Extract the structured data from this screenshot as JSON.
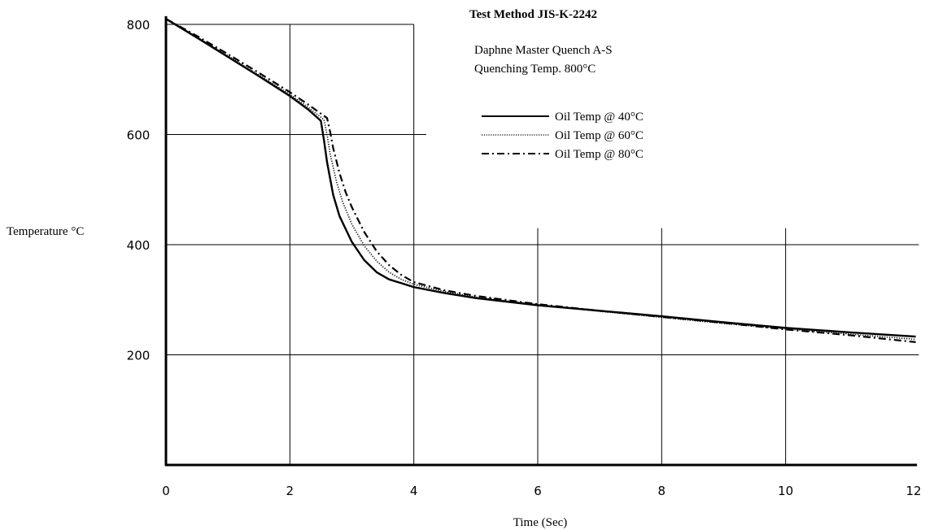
{
  "chart_data": {
    "type": "line",
    "title": "Test Method JIS-K-2242",
    "subtitle_lines": [
      "Daphne Master Quench A-S",
      "Quenching Temp. 800°C"
    ],
    "xlabel": "Time (Sec)",
    "ylabel": "Temperature °C",
    "xlim": [
      0,
      12
    ],
    "ylim": [
      0,
      820
    ],
    "x_ticks": [
      0,
      2,
      4,
      6,
      8,
      10,
      12
    ],
    "y_ticks": [
      200,
      400,
      600,
      800
    ],
    "x_tick_labels": [
      "0",
      "2",
      "4",
      "6",
      "8",
      "10",
      "12"
    ],
    "y_tick_labels": [
      "200",
      "400",
      "600",
      "800"
    ],
    "legend_position": "top-right",
    "series": [
      {
        "name": "Oil Temp @ 40°C",
        "style": "solid",
        "x": [
          0,
          0.5,
          1,
          1.5,
          2,
          2.3,
          2.5,
          2.55,
          2.6,
          2.7,
          2.8,
          3.0,
          3.2,
          3.4,
          3.6,
          3.8,
          4,
          4.5,
          5,
          6,
          7,
          8,
          9,
          10,
          11,
          12.1
        ],
        "y": [
          810,
          776,
          741,
          706,
          670,
          645,
          625,
          590,
          550,
          490,
          452,
          405,
          372,
          350,
          337,
          330,
          323,
          312,
          303,
          290,
          280,
          270,
          259,
          249,
          241,
          233
        ]
      },
      {
        "name": "Oil Temp @ 60°C",
        "style": "dotted",
        "x": [
          0,
          0.5,
          1,
          1.5,
          2,
          2.3,
          2.55,
          2.6,
          2.65,
          2.75,
          2.85,
          3.0,
          3.2,
          3.4,
          3.6,
          3.8,
          4,
          4.5,
          5,
          6,
          7,
          8,
          9,
          10,
          11,
          12.1
        ],
        "y": [
          810,
          777,
          743,
          708,
          673,
          649,
          627,
          600,
          565,
          515,
          478,
          437,
          398,
          370,
          350,
          337,
          328,
          315,
          305,
          291,
          279,
          268,
          257,
          247,
          238,
          228
        ]
      },
      {
        "name": "Oil Temp @ 80°C",
        "style": "dashdot",
        "x": [
          0,
          0.5,
          1,
          1.5,
          2,
          2.3,
          2.6,
          2.65,
          2.7,
          2.8,
          2.9,
          3.0,
          3.2,
          3.4,
          3.6,
          3.8,
          4,
          4.5,
          5,
          6,
          7,
          8,
          9,
          10,
          11,
          12.1
        ],
        "y": [
          810,
          779,
          746,
          712,
          677,
          654,
          630,
          605,
          575,
          530,
          495,
          468,
          423,
          388,
          363,
          345,
          332,
          317,
          307,
          292,
          280,
          269,
          258,
          246,
          236,
          223
        ]
      }
    ]
  }
}
